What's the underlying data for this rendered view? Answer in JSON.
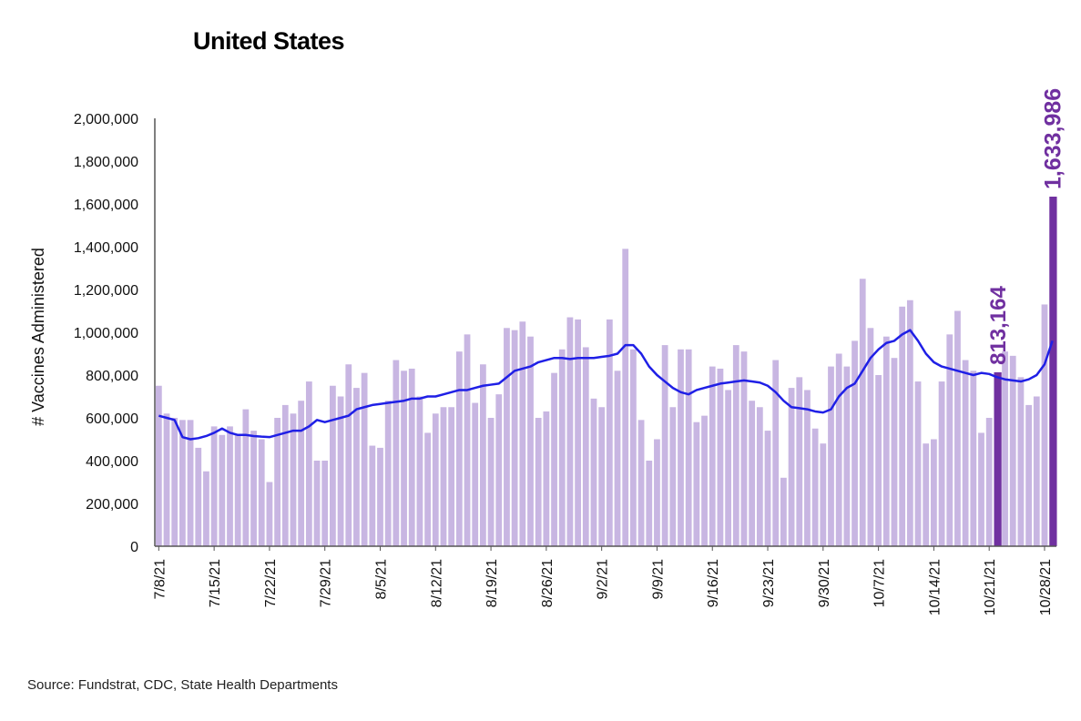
{
  "chart_data": {
    "type": "bar",
    "title": "United States",
    "ylabel": "# Vaccines Administered",
    "xlabel": "",
    "ylim": [
      0,
      2000000
    ],
    "y_ticks": [
      "0",
      "200,000",
      "400,000",
      "600,000",
      "800,000",
      "1,000,000",
      "1,200,000",
      "1,400,000",
      "1,600,000",
      "1,800,000",
      "2,000,000"
    ],
    "x_tick_labels": [
      "7/8/21",
      "7/15/21",
      "7/22/21",
      "7/29/21",
      "8/5/21",
      "8/12/21",
      "8/19/21",
      "8/26/21",
      "9/2/21",
      "9/9/21",
      "9/16/21",
      "9/23/21",
      "9/30/21",
      "10/7/21",
      "10/14/21",
      "10/21/21",
      "10/28/21"
    ],
    "start_date": "7/8/21",
    "series": [
      {
        "type": "bar",
        "values": [
          750000,
          620000,
          600000,
          590000,
          590000,
          460000,
          350000,
          560000,
          520000,
          560000,
          520000,
          640000,
          540000,
          500000,
          300000,
          600000,
          660000,
          620000,
          680000,
          770000,
          400000,
          400000,
          750000,
          700000,
          850000,
          740000,
          810000,
          470000,
          460000,
          680000,
          870000,
          820000,
          830000,
          700000,
          530000,
          620000,
          650000,
          650000,
          910000,
          990000,
          670000,
          850000,
          600000,
          710000,
          1020000,
          1010000,
          1050000,
          980000,
          600000,
          630000,
          810000,
          920000,
          1070000,
          1060000,
          930000,
          690000,
          650000,
          1060000,
          820000,
          1390000,
          920000,
          590000,
          400000,
          500000,
          940000,
          650000,
          920000,
          920000,
          580000,
          610000,
          840000,
          830000,
          730000,
          940000,
          910000,
          680000,
          650000,
          540000,
          870000,
          320000,
          740000,
          790000,
          730000,
          550000,
          480000,
          840000,
          900000,
          840000,
          960000,
          1250000,
          1020000,
          800000,
          980000,
          880000,
          1120000,
          1150000,
          770000,
          480000,
          500000,
          770000,
          990000,
          1100000,
          870000,
          820000,
          530000,
          600000,
          813164,
          910000,
          890000,
          790000,
          660000,
          700000,
          1130000,
          1633986
        ]
      },
      {
        "type": "line",
        "values": [
          610000,
          600000,
          590000,
          510000,
          500000,
          505000,
          515000,
          530000,
          550000,
          530000,
          520000,
          520000,
          515000,
          512000,
          510000,
          520000,
          530000,
          540000,
          540000,
          560000,
          590000,
          580000,
          590000,
          600000,
          610000,
          640000,
          650000,
          660000,
          665000,
          670000,
          675000,
          680000,
          690000,
          690000,
          700000,
          700000,
          710000,
          720000,
          730000,
          730000,
          740000,
          750000,
          755000,
          760000,
          790000,
          820000,
          830000,
          840000,
          860000,
          870000,
          880000,
          880000,
          875000,
          880000,
          880000,
          880000,
          885000,
          890000,
          900000,
          940000,
          940000,
          900000,
          840000,
          800000,
          770000,
          740000,
          720000,
          710000,
          730000,
          740000,
          750000,
          760000,
          765000,
          770000,
          775000,
          770000,
          765000,
          750000,
          720000,
          680000,
          650000,
          645000,
          640000,
          630000,
          625000,
          640000,
          700000,
          740000,
          760000,
          820000,
          880000,
          920000,
          950000,
          960000,
          990000,
          1010000,
          960000,
          900000,
          860000,
          840000,
          830000,
          820000,
          810000,
          800000,
          810000,
          805000,
          790000,
          780000,
          775000,
          770000,
          780000,
          800000,
          850000,
          960000
        ],
        "color": "#1f1fe6"
      }
    ],
    "highlights": [
      {
        "value": 813164,
        "label": "813,164"
      },
      {
        "value": 1633986,
        "label": "1,633,986"
      }
    ],
    "bar_color": "#c8b6e2",
    "highlight_color": "#7030a0",
    "grid": false,
    "source": "Source: Fundstrat, CDC, State Health Departments"
  }
}
